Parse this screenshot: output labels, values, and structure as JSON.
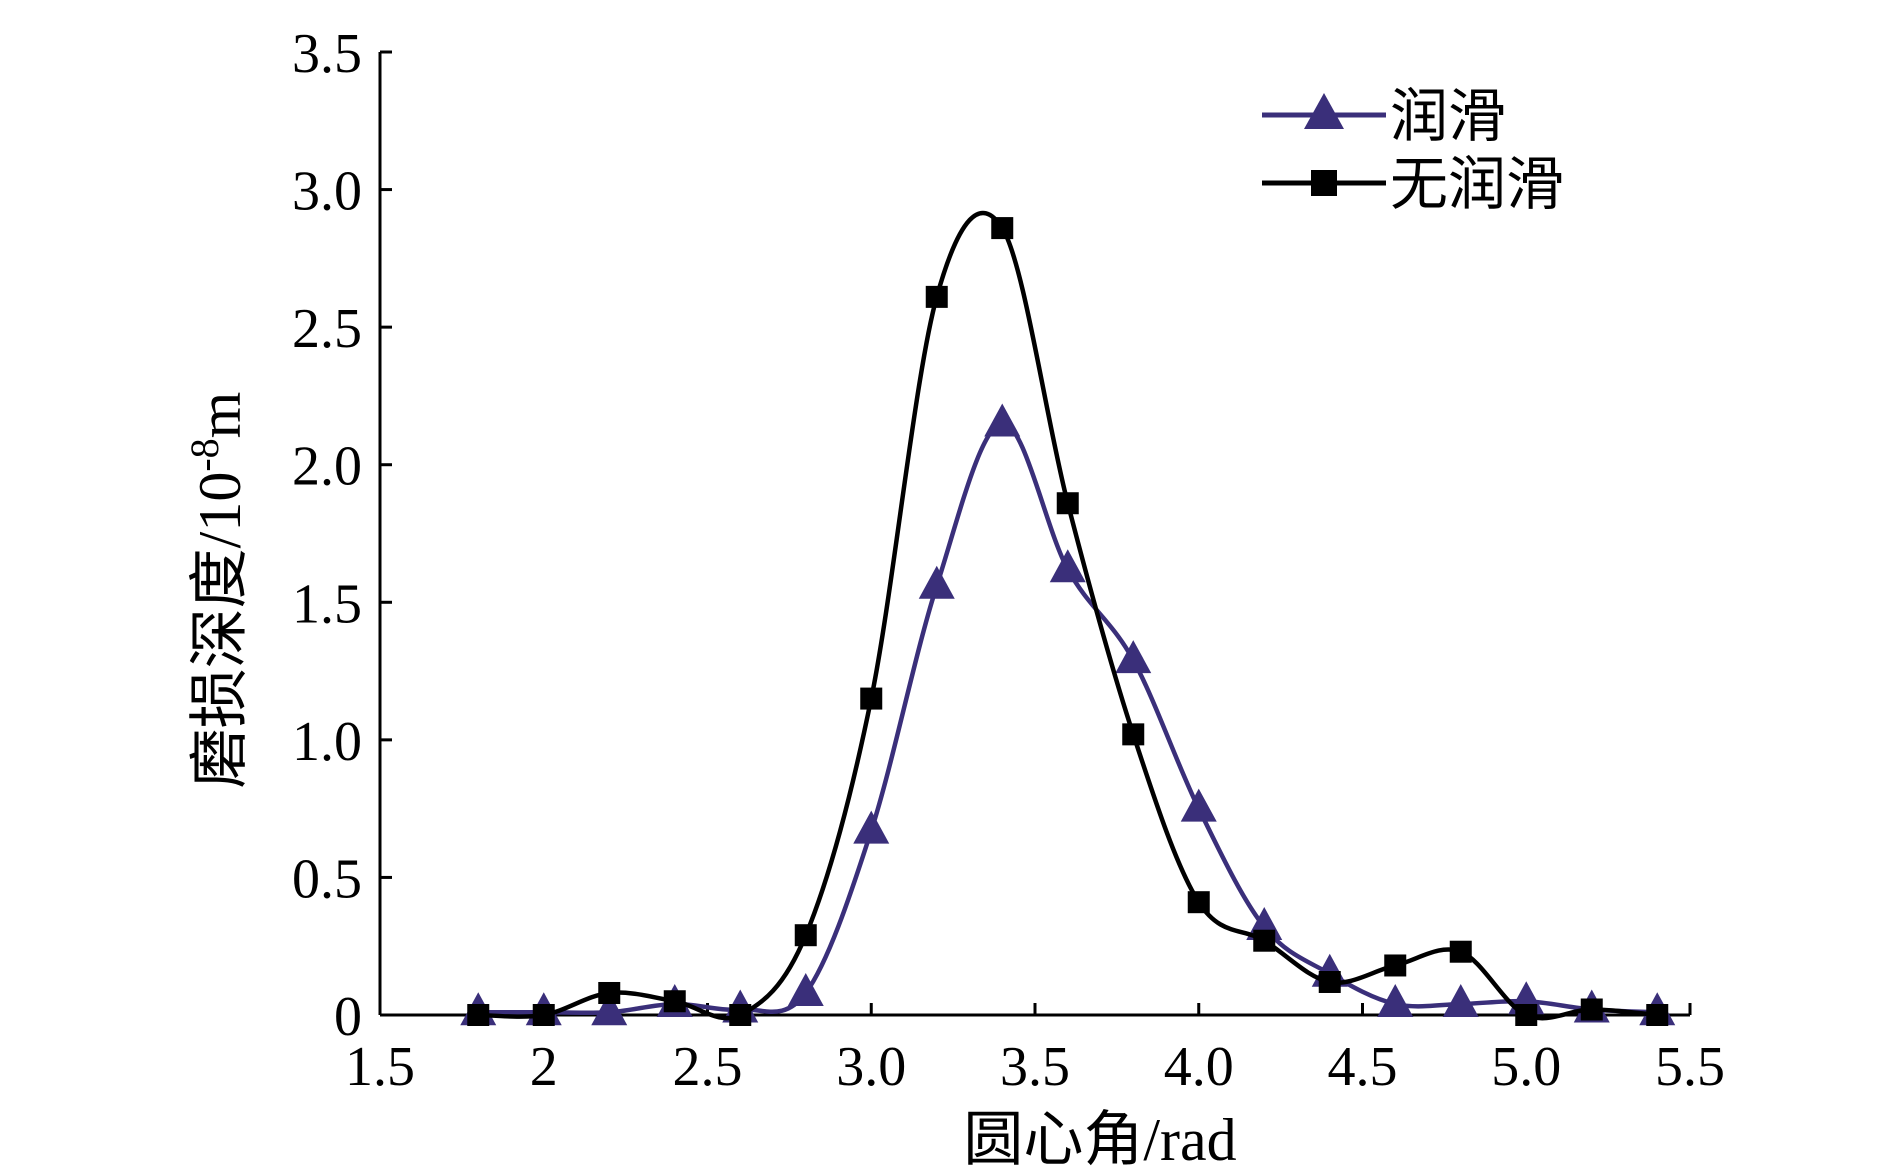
{
  "chart_data": {
    "type": "line",
    "title": "",
    "xlabel": "圆心角/rad",
    "ylabel_main": "磨损深度/10",
    "ylabel_exp": "-8",
    "ylabel_unit": "m",
    "xlim": [
      1.5,
      5.5
    ],
    "ylim": [
      0,
      3.5
    ],
    "xticks": [
      1.5,
      2,
      2.5,
      3.0,
      3.5,
      4.0,
      4.5,
      5.0,
      5.5
    ],
    "xtick_labels": [
      "1.5",
      "2",
      "2.5",
      "3.0",
      "3.5",
      "4.0",
      "4.5",
      "5.0",
      "5.5"
    ],
    "yticks": [
      0,
      0.5,
      1.0,
      1.5,
      2.0,
      2.5,
      3.0,
      3.5
    ],
    "ytick_labels": [
      "0",
      "0.5",
      "1.0",
      "1.5",
      "2.0",
      "2.5",
      "3.0",
      "3.5"
    ],
    "grid": false,
    "legend_position": "top-right",
    "series": [
      {
        "name": "润滑",
        "color": "#3a2f7a",
        "marker": "triangle",
        "x": [
          1.8,
          2.0,
          2.2,
          2.4,
          2.6,
          2.8,
          3.0,
          3.2,
          3.4,
          3.6,
          3.8,
          4.0,
          4.2,
          4.4,
          4.6,
          4.8,
          5.0,
          5.2,
          5.4
        ],
        "y": [
          0.01,
          0.01,
          0.01,
          0.04,
          0.02,
          0.08,
          0.67,
          1.56,
          2.15,
          1.62,
          1.29,
          0.75,
          0.32,
          0.15,
          0.04,
          0.04,
          0.05,
          0.02,
          0.01
        ]
      },
      {
        "name": "无润滑",
        "color": "#000000",
        "marker": "square",
        "x": [
          1.8,
          2.0,
          2.2,
          2.4,
          2.6,
          2.8,
          3.0,
          3.2,
          3.4,
          3.6,
          3.8,
          4.0,
          4.2,
          4.4,
          4.6,
          4.8,
          5.0,
          5.2,
          5.4
        ],
        "y": [
          0.0,
          0.0,
          0.08,
          0.05,
          0.0,
          0.29,
          1.15,
          2.61,
          2.86,
          1.86,
          1.02,
          0.41,
          0.27,
          0.12,
          0.18,
          0.23,
          0.0,
          0.02,
          0.0
        ]
      }
    ]
  }
}
